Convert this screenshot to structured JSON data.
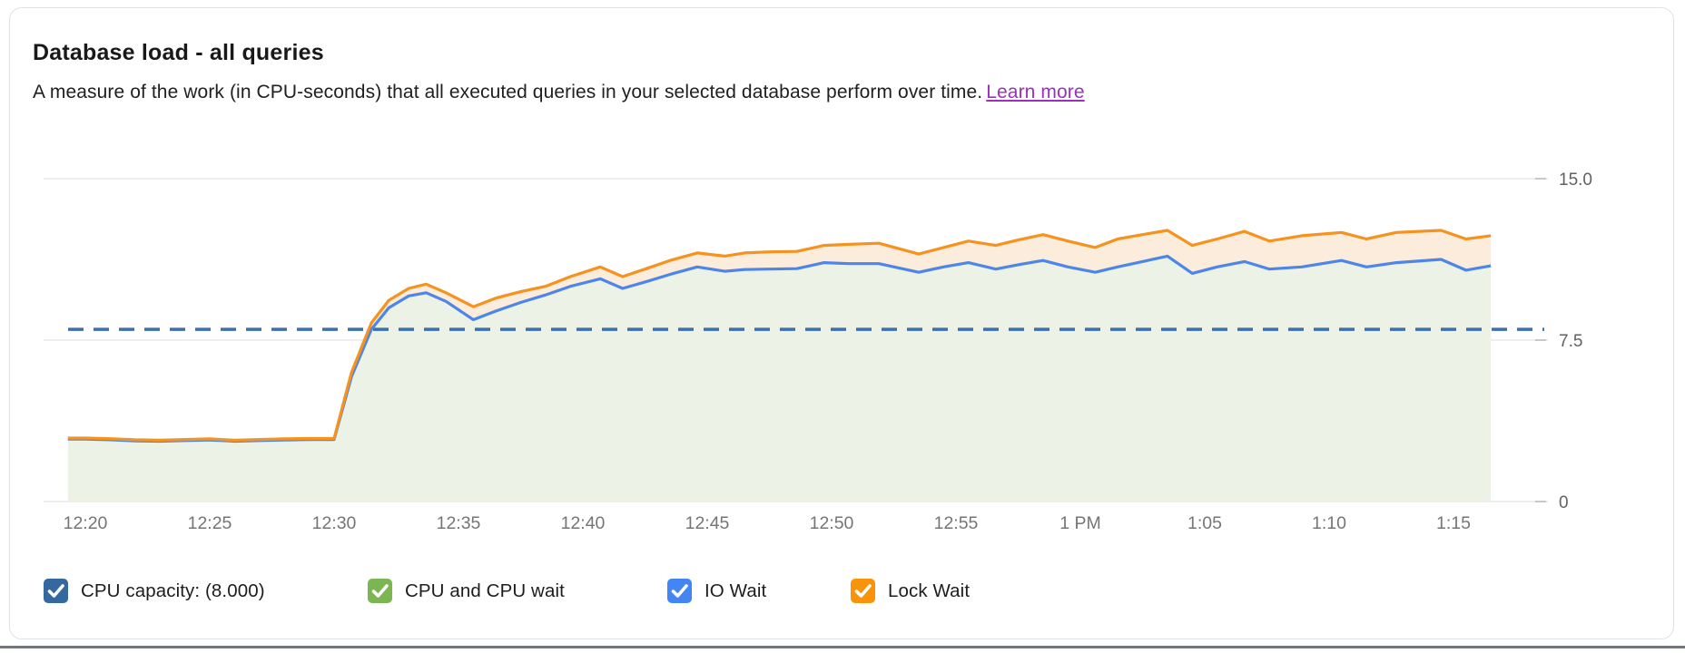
{
  "card": {
    "title": "Database load - all queries",
    "subtitle": "A measure of the work (in CPU-seconds) that all executed queries in your selected database perform over time.",
    "learn_more_label": "Learn more"
  },
  "colors": {
    "capacity_checkbox": "#35689E",
    "cpu_checkbox": "#7CB653",
    "io_wait_checkbox": "#4385F5",
    "lock_wait_checkbox": "#FA9307",
    "blue_line": "#4D86E8",
    "orange_line": "#F6921E",
    "green_fill": "#EDF2E6",
    "peach_fill": "#FCECDC",
    "capacity_dash": "#3A6FB1",
    "gridline": "#ECEEF0",
    "axis_label": "#757575",
    "link_purple": "#9B30C0"
  },
  "legend": {
    "items": [
      {
        "label": "CPU capacity: (8.000)",
        "color": "#35689E",
        "checked": true
      },
      {
        "label": "CPU and CPU wait",
        "color": "#7CB653",
        "checked": true
      },
      {
        "label": "IO Wait",
        "color": "#4385F5",
        "checked": true
      },
      {
        "label": "Lock Wait",
        "color": "#FA9307",
        "checked": true
      }
    ]
  },
  "chart_data": {
    "type": "area",
    "title": "Database load - all queries",
    "xlabel": "",
    "ylabel": "",
    "ylim": [
      0,
      15
    ],
    "grid": "horizontal",
    "legend_position": "bottom",
    "y_ticks": [
      {
        "value": 0,
        "label": "0"
      },
      {
        "value": 7.5,
        "label": "7.5"
      },
      {
        "value": 15,
        "label": "15.0"
      }
    ],
    "x_unit": "minutes since 12:20 PM",
    "x_ticks": [
      {
        "t": 0,
        "label": "12:20"
      },
      {
        "t": 5,
        "label": "12:25"
      },
      {
        "t": 10,
        "label": "12:30"
      },
      {
        "t": 15,
        "label": "12:35"
      },
      {
        "t": 20,
        "label": "12:40"
      },
      {
        "t": 25,
        "label": "12:45"
      },
      {
        "t": 30,
        "label": "12:50"
      },
      {
        "t": 35,
        "label": "12:55"
      },
      {
        "t": 40,
        "label": "1 PM"
      },
      {
        "t": 45,
        "label": "1:05"
      },
      {
        "t": 50,
        "label": "1:10"
      },
      {
        "t": 55,
        "label": "1:15"
      }
    ],
    "capacity_line": {
      "value": 8,
      "display": "8.000",
      "style": "dashed",
      "color": "#3A6FB1",
      "legend": "CPU capacity: (8.000)"
    },
    "x": [
      -0.7,
      0,
      1,
      2,
      3,
      4,
      5,
      6,
      7,
      8,
      9,
      10,
      10.7,
      11.5,
      12.2,
      13,
      13.7,
      14.5,
      15.6,
      16.5,
      17.5,
      18.5,
      19.5,
      20.7,
      21.6,
      22.5,
      23.5,
      24.6,
      25.7,
      26.5,
      27.5,
      28.6,
      29.7,
      30.7,
      31.9,
      33.5,
      34.5,
      35.5,
      36.6,
      37.5,
      38.5,
      39.5,
      40.6,
      41.5,
      42.5,
      43.5,
      44.5,
      45.5,
      46.6,
      47.6,
      48.9,
      50.5,
      51.5,
      52.7,
      54.5,
      55.5,
      56.5
    ],
    "series": [
      {
        "name": "CPU and CPU wait + IO Wait (blue boundary)",
        "line_color": "#4D86E8",
        "fill_color": "#EDF2E6",
        "values": [
          2.9,
          2.9,
          2.87,
          2.82,
          2.8,
          2.83,
          2.86,
          2.8,
          2.83,
          2.86,
          2.88,
          2.88,
          5.8,
          8.0,
          9.0,
          9.55,
          9.7,
          9.3,
          8.45,
          8.85,
          9.25,
          9.6,
          10.0,
          10.35,
          9.9,
          10.2,
          10.55,
          10.9,
          10.7,
          10.78,
          10.8,
          10.82,
          11.1,
          11.05,
          11.05,
          10.65,
          10.9,
          11.1,
          10.8,
          11.0,
          11.2,
          10.9,
          10.65,
          10.9,
          11.15,
          11.4,
          10.6,
          10.9,
          11.15,
          10.8,
          10.9,
          11.2,
          10.9,
          11.1,
          11.25,
          10.75,
          10.95
        ]
      },
      {
        "name": "Total incl. Lock Wait (orange boundary)",
        "line_color": "#F6921E",
        "fill_color": "#FCECDC",
        "values": [
          2.95,
          2.95,
          2.92,
          2.87,
          2.85,
          2.88,
          2.91,
          2.85,
          2.88,
          2.91,
          2.93,
          2.93,
          6.0,
          8.3,
          9.35,
          9.9,
          10.1,
          9.7,
          9.05,
          9.45,
          9.75,
          10.0,
          10.45,
          10.9,
          10.45,
          10.8,
          11.2,
          11.55,
          11.4,
          11.55,
          11.6,
          11.62,
          11.9,
          11.95,
          12.0,
          11.5,
          11.8,
          12.1,
          11.9,
          12.15,
          12.4,
          12.1,
          11.8,
          12.2,
          12.4,
          12.6,
          11.9,
          12.2,
          12.55,
          12.1,
          12.35,
          12.5,
          12.2,
          12.5,
          12.6,
          12.2,
          12.35
        ]
      }
    ]
  }
}
